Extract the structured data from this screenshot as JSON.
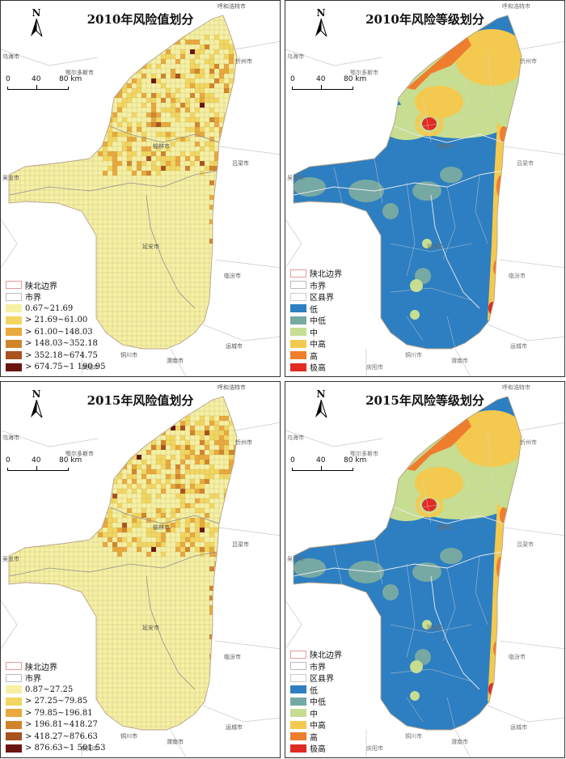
{
  "panels": [
    {
      "id": "p1",
      "kind": "value",
      "title": "2010年风险值划分",
      "legend": [
        {
          "label": "陕北边界",
          "type": "boundary",
          "color": "#e59a9a"
        },
        {
          "label": "市界",
          "type": "line",
          "color": "#bbbbbb"
        },
        {
          "label": "0.67~21.69",
          "color": "#f6f0a4"
        },
        {
          "label": "> 21.69~61.00",
          "color": "#f3d661"
        },
        {
          "label": "> 61.00~148.03",
          "color": "#e9a93d"
        },
        {
          "label": "> 148.03~352.18",
          "color": "#d1852b"
        },
        {
          "label": "> 352.18~674.75",
          "color": "#a9521f"
        },
        {
          "label": "> 674.75~1 190.95",
          "color": "#6b1512"
        }
      ]
    },
    {
      "id": "p2",
      "kind": "level",
      "title": "2010年风险等级划分",
      "legend": [
        {
          "label": "陕北边界",
          "type": "boundary",
          "color": "#e59a9a"
        },
        {
          "label": "市界",
          "type": "line",
          "color": "#bbbbbb"
        },
        {
          "label": "区县界",
          "type": "line",
          "color": "#cccccc"
        },
        {
          "label": "低",
          "color": "#2e7fc1"
        },
        {
          "label": "中低",
          "color": "#77a9a4"
        },
        {
          "label": "中",
          "color": "#c7dd91"
        },
        {
          "label": "中高",
          "color": "#f4c94f"
        },
        {
          "label": "高",
          "color": "#ef7d2e"
        },
        {
          "label": "极高",
          "color": "#e02b22"
        }
      ]
    },
    {
      "id": "p3",
      "kind": "value",
      "title": "2015年风险值划分",
      "legend": [
        {
          "label": "陕北边界",
          "type": "boundary",
          "color": "#e59a9a"
        },
        {
          "label": "市界",
          "type": "line",
          "color": "#bbbbbb"
        },
        {
          "label": "0.87~27.25",
          "color": "#f6f0a4"
        },
        {
          "label": "> 27.25~79.85",
          "color": "#f3d661"
        },
        {
          "label": "> 79.85~196.81",
          "color": "#e9a93d"
        },
        {
          "label": "> 196.81~418.27",
          "color": "#d1852b"
        },
        {
          "label": "> 418.27~876.63",
          "color": "#a9521f"
        },
        {
          "label": "> 876.63~1 501.53",
          "color": "#6b1512"
        }
      ]
    },
    {
      "id": "p4",
      "kind": "level",
      "title": "2015年风险等级划分",
      "legend": [
        {
          "label": "陕北边界",
          "type": "boundary",
          "color": "#e59a9a"
        },
        {
          "label": "市界",
          "type": "line",
          "color": "#bbbbbb"
        },
        {
          "label": "区县界",
          "type": "line",
          "color": "#cccccc"
        },
        {
          "label": "低",
          "color": "#2e7fc1"
        },
        {
          "label": "中低",
          "color": "#77a9a4"
        },
        {
          "label": "中",
          "color": "#c7dd91"
        },
        {
          "label": "中高",
          "color": "#f4c94f"
        },
        {
          "label": "高",
          "color": "#ef7d2e"
        },
        {
          "label": "极高",
          "color": "#e02b22"
        }
      ]
    }
  ],
  "common": {
    "north": "N",
    "scale_ticks": [
      "0",
      "40",
      "80 km"
    ],
    "places": {
      "hohhot": "呼和浩特市",
      "wuhai": "乌海市",
      "ordos": "鄂尔多斯市",
      "xinzhou": "忻州市",
      "yulin": "榆林市",
      "lvliang": "吕梁市",
      "wuzhong": "吴忠市",
      "linfen": "临汾市",
      "yanan": "延安市",
      "yuncheng": "运城市",
      "tongchuan": "铜川市",
      "weinan": "渭南市",
      "qingyang": "庆阳市"
    }
  }
}
